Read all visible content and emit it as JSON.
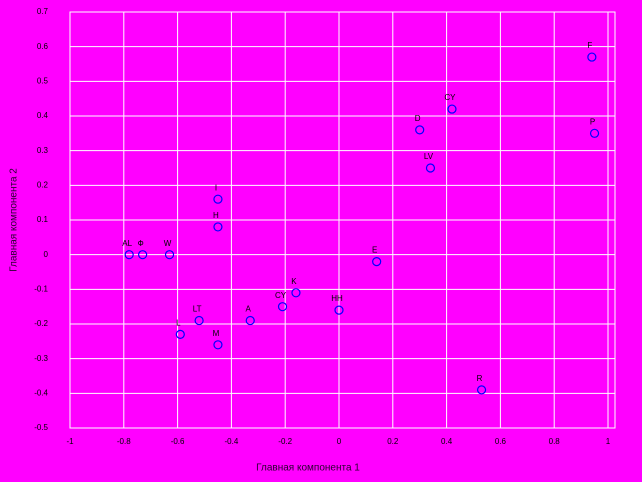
{
  "chart_data": {
    "type": "scatter",
    "xlabel": "Главная компонента 1",
    "ylabel": "Главная компонента 2",
    "labels": [
      "AL",
      "Ф",
      "W",
      "I",
      "H",
      "L",
      "LT",
      "M",
      "A",
      "CY",
      "K",
      "HH",
      "E",
      "D",
      "CY",
      "LV",
      "F",
      "P",
      "R"
    ],
    "x": [
      -0.78,
      -0.73,
      -0.63,
      -0.45,
      -0.45,
      -0.59,
      -0.52,
      -0.45,
      -0.33,
      -0.21,
      -0.16,
      0.0,
      0.14,
      0.3,
      0.42,
      0.34,
      0.94,
      0.95,
      0.53
    ],
    "values": [
      0.0,
      0.0,
      0.0,
      0.16,
      0.08,
      -0.23,
      -0.19,
      -0.26,
      -0.19,
      -0.15,
      -0.11,
      -0.16,
      -0.02,
      0.36,
      0.42,
      0.25,
      0.57,
      0.35,
      -0.39
    ],
    "color": "#0000ff",
    "xlim": [
      -1,
      1
    ],
    "xticks": [
      -1,
      -0.8,
      -0.6,
      -0.4,
      -0.2,
      0,
      0.2,
      0.4,
      0.6,
      0.8,
      1
    ],
    "ylim": [
      -0.5,
      0.7
    ],
    "yticks": [
      -0.5,
      -0.4,
      -0.3,
      -0.2,
      -0.1,
      0,
      0.1,
      0.2,
      0.3,
      0.4,
      0.5,
      0.6,
      0.7
    ],
    "grid": true
  }
}
